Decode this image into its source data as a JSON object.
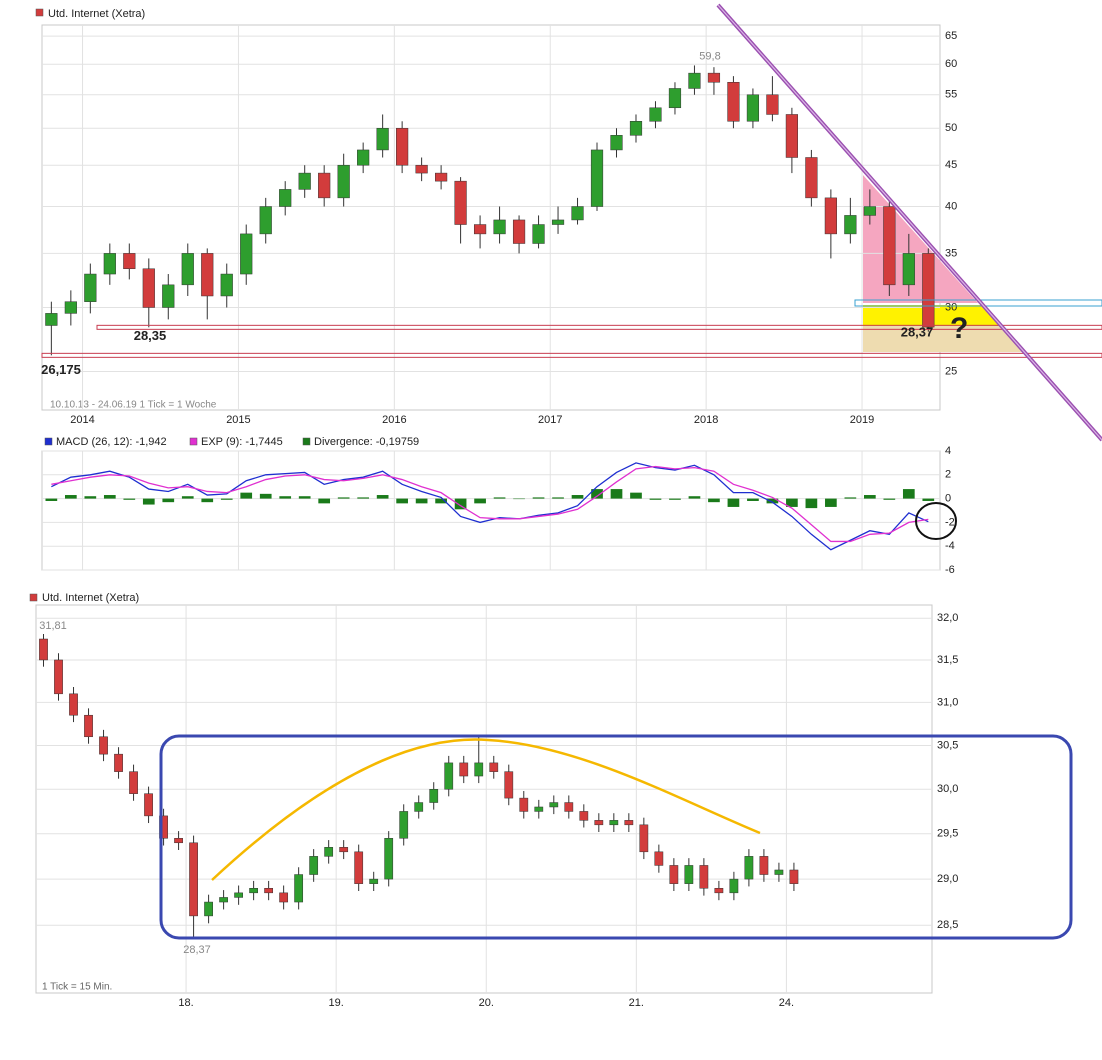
{
  "chart_data": [
    {
      "type": "candlestick",
      "title": "Utd. Internet (Xetra)",
      "log_scale": true,
      "grid": true,
      "up_color": "#2e9e2e",
      "down_color": "#d23c3c",
      "x": [
        2013.8,
        2013.925,
        2014.05,
        2014.175,
        2014.3,
        2014.425,
        2014.55,
        2014.675,
        2014.8,
        2014.925,
        2015.05,
        2015.175,
        2015.3,
        2015.425,
        2015.55,
        2015.675,
        2015.8,
        2015.925,
        2016.05,
        2016.175,
        2016.3,
        2016.425,
        2016.55,
        2016.675,
        2016.8,
        2016.925,
        2017.05,
        2017.175,
        2017.3,
        2017.425,
        2017.55,
        2017.675,
        2017.8,
        2017.925,
        2018.05,
        2018.175,
        2018.3,
        2018.425,
        2018.55,
        2018.675,
        2018.8,
        2018.925,
        2019.05,
        2019.175,
        2019.3,
        2019.425
      ],
      "open": [
        28.5,
        29.5,
        30.5,
        33,
        35,
        33.5,
        30,
        32,
        35,
        31,
        33,
        37,
        40,
        42,
        44,
        41,
        45,
        47,
        50,
        45,
        44,
        43,
        38,
        37,
        38.5,
        36,
        38,
        38.5,
        40,
        47,
        49,
        51,
        53,
        56,
        58.5,
        57,
        51,
        55,
        52,
        46,
        41,
        37,
        39,
        40,
        32,
        35
      ],
      "high": [
        30.5,
        31.5,
        34,
        36,
        36,
        34.5,
        33,
        36,
        35.5,
        34,
        38,
        41,
        43,
        45,
        45,
        46.5,
        48,
        52,
        51,
        46,
        45,
        43.5,
        39,
        40,
        39,
        39,
        40,
        41,
        48,
        50,
        52,
        54,
        57,
        59.8,
        59.5,
        58,
        56,
        58,
        53,
        47,
        42,
        41,
        42,
        41,
        37,
        35.5
      ],
      "low": [
        26.175,
        28.5,
        29.5,
        32,
        32.5,
        28.35,
        29,
        31,
        29,
        30,
        32,
        36,
        39,
        41,
        40,
        40,
        44,
        46,
        44,
        43,
        42,
        36,
        35.5,
        36,
        35,
        35.5,
        37,
        38,
        39.5,
        46,
        48,
        50,
        52,
        55,
        55,
        50,
        50,
        51,
        44,
        40,
        34.5,
        36,
        38,
        31,
        31,
        28.0
      ],
      "close": [
        29.5,
        30.5,
        33,
        35,
        33.5,
        30,
        32,
        35,
        31,
        33,
        37,
        40,
        42,
        44,
        41,
        45,
        47,
        50,
        45,
        44,
        43,
        38,
        37,
        38.5,
        36,
        38,
        38.5,
        40,
        47,
        49,
        51,
        53,
        56,
        58.5,
        57,
        51,
        55,
        52,
        46,
        41,
        37,
        39,
        40,
        32,
        35,
        28.37
      ],
      "xlim": [
        2013.74,
        2019.5
      ],
      "xticks": [
        2014,
        2015,
        2016,
        2017,
        2018,
        2019
      ],
      "ylim": [
        22.4,
        67.1
      ],
      "yticks": [
        25,
        30,
        35,
        40,
        45,
        50,
        55,
        60,
        65
      ],
      "annotations": [
        {
          "value": 59.8,
          "label": "59,8"
        },
        {
          "value": 28.35,
          "label": "28,35"
        },
        {
          "value": 26.175,
          "label": "26,175"
        },
        {
          "value": 28.37,
          "label": "28,37"
        }
      ],
      "mark_text": "?",
      "footnote": "10.10.13 - 24.06.19   1 Tick = 1 Woche"
    },
    {
      "type": "combo",
      "grid": true,
      "x": [
        2013.8,
        2013.925,
        2014.05,
        2014.175,
        2014.3,
        2014.425,
        2014.55,
        2014.675,
        2014.8,
        2014.925,
        2015.05,
        2015.175,
        2015.3,
        2015.425,
        2015.55,
        2015.675,
        2015.8,
        2015.925,
        2016.05,
        2016.175,
        2016.3,
        2016.425,
        2016.55,
        2016.675,
        2016.8,
        2016.925,
        2017.05,
        2017.175,
        2017.3,
        2017.425,
        2017.55,
        2017.675,
        2017.8,
        2017.925,
        2018.05,
        2018.175,
        2018.3,
        2018.425,
        2018.55,
        2018.675,
        2018.8,
        2018.925,
        2019.05,
        2019.175,
        2019.3,
        2019.425
      ],
      "series": [
        {
          "name": "MACD (26, 12): -1,942",
          "color": "#1f2fd0",
          "type": "line",
          "values": [
            1.0,
            1.8,
            2.0,
            2.3,
            1.8,
            0.8,
            0.6,
            1.2,
            0.3,
            0.4,
            1.5,
            2.0,
            2.1,
            2.2,
            1.2,
            1.6,
            1.8,
            2.3,
            1.2,
            0.6,
            0.1,
            -1.5,
            -2.0,
            -1.6,
            -1.7,
            -1.4,
            -1.2,
            -0.6,
            1.0,
            2.2,
            3.0,
            2.6,
            2.4,
            2.8,
            2.0,
            0.5,
            0.5,
            -0.3,
            -1.5,
            -3.0,
            -4.3,
            -3.5,
            -2.7,
            -3.0,
            -1.2,
            -1.942
          ]
        },
        {
          "name": "EXP (9): -1,7445",
          "color": "#e030d0",
          "type": "line",
          "values": [
            1.2,
            1.5,
            1.8,
            2.0,
            1.9,
            1.3,
            0.9,
            1.0,
            0.6,
            0.5,
            1.0,
            1.6,
            1.9,
            2.0,
            1.6,
            1.5,
            1.7,
            2.0,
            1.6,
            1.0,
            0.5,
            -0.6,
            -1.6,
            -1.7,
            -1.7,
            -1.5,
            -1.3,
            -0.9,
            0.2,
            1.4,
            2.5,
            2.7,
            2.5,
            2.6,
            2.3,
            1.2,
            0.7,
            0.1,
            -0.8,
            -2.2,
            -3.6,
            -3.6,
            -3.0,
            -2.9,
            -2.0,
            -1.7445
          ]
        },
        {
          "name": "Divergence: -0,19759",
          "color": "#1a7a1a",
          "type": "bar",
          "values": [
            -0.2,
            0.3,
            0.2,
            0.3,
            -0.1,
            -0.5,
            -0.3,
            0.2,
            -0.3,
            -0.1,
            0.5,
            0.4,
            0.2,
            0.2,
            -0.4,
            0.1,
            0.1,
            0.3,
            -0.4,
            -0.4,
            -0.4,
            -0.9,
            -0.4,
            0.1,
            0,
            0.1,
            0.1,
            0.3,
            0.8,
            0.8,
            0.5,
            -0.1,
            -0.1,
            0.2,
            -0.3,
            -0.7,
            -0.2,
            -0.4,
            -0.7,
            -0.8,
            -0.7,
            0.1,
            0.3,
            -0.1,
            0.8,
            -0.19759
          ]
        }
      ],
      "xlim": [
        2013.74,
        2019.5
      ],
      "xticks": [
        2014,
        2015,
        2016,
        2017,
        2018,
        2019
      ],
      "ylim": [
        -6,
        4
      ],
      "yticks": [
        -6,
        -4,
        -2,
        0,
        2,
        4
      ]
    },
    {
      "type": "candlestick",
      "title": "Utd. Internet (Xetra)",
      "log_scale": true,
      "grid": true,
      "up_color": "#2e9e2e",
      "down_color": "#d23c3c",
      "x": [
        -0.95,
        -0.85,
        -0.75,
        -0.65,
        -0.55,
        -0.45,
        -0.35,
        -0.25,
        -0.15,
        -0.05,
        0.05,
        0.15,
        0.25,
        0.35,
        0.45,
        0.55,
        0.65,
        0.75,
        0.85,
        0.95,
        1.05,
        1.15,
        1.25,
        1.35,
        1.45,
        1.55,
        1.65,
        1.75,
        1.85,
        1.95,
        2.05,
        2.15,
        2.25,
        2.35,
        2.45,
        2.55,
        2.65,
        2.75,
        2.85,
        2.95,
        3.05,
        3.15,
        3.25,
        3.35,
        3.45,
        3.55,
        3.65,
        3.75,
        3.85,
        3.95,
        4.05
      ],
      "open": [
        31.75,
        31.5,
        31.1,
        30.85,
        30.6,
        30.4,
        30.2,
        29.95,
        29.7,
        29.45,
        29.4,
        28.6,
        28.75,
        28.8,
        28.85,
        28.9,
        28.85,
        28.75,
        29.05,
        29.25,
        29.35,
        29.3,
        28.95,
        29.0,
        29.45,
        29.75,
        29.85,
        30.0,
        30.3,
        30.15,
        30.3,
        30.2,
        29.9,
        29.75,
        29.8,
        29.85,
        29.75,
        29.65,
        29.6,
        29.65,
        29.6,
        29.3,
        29.15,
        28.95,
        29.15,
        28.9,
        28.85,
        29.0,
        29.25,
        29.05,
        29.1
      ],
      "high": [
        31.81,
        31.58,
        31.18,
        30.93,
        30.68,
        30.48,
        30.28,
        30.03,
        29.78,
        29.53,
        29.48,
        28.83,
        28.88,
        28.93,
        28.98,
        28.98,
        28.93,
        29.13,
        29.33,
        29.43,
        29.43,
        29.38,
        29.08,
        29.53,
        29.83,
        29.93,
        30.08,
        30.38,
        30.38,
        30.6,
        30.38,
        30.28,
        29.98,
        29.88,
        29.93,
        29.93,
        29.83,
        29.73,
        29.73,
        29.73,
        29.68,
        29.38,
        29.23,
        29.23,
        29.23,
        28.98,
        29.08,
        29.33,
        29.33,
        29.18,
        29.18
      ],
      "low": [
        31.42,
        31.02,
        30.77,
        30.52,
        30.32,
        30.12,
        29.87,
        29.62,
        29.37,
        29.32,
        28.37,
        28.52,
        28.67,
        28.72,
        28.77,
        28.77,
        28.67,
        28.67,
        28.97,
        29.17,
        29.22,
        28.87,
        28.87,
        28.92,
        29.37,
        29.67,
        29.77,
        29.92,
        30.07,
        30.07,
        30.12,
        29.82,
        29.67,
        29.67,
        29.72,
        29.67,
        29.57,
        29.52,
        29.52,
        29.52,
        29.22,
        29.07,
        28.87,
        28.87,
        28.82,
        28.77,
        28.77,
        28.92,
        28.97,
        28.97,
        28.87
      ],
      "close": [
        31.5,
        31.1,
        30.85,
        30.6,
        30.4,
        30.2,
        29.95,
        29.7,
        29.45,
        29.4,
        28.6,
        28.75,
        28.8,
        28.85,
        28.9,
        28.85,
        28.75,
        29.05,
        29.25,
        29.35,
        29.3,
        28.95,
        29.0,
        29.45,
        29.75,
        29.85,
        30.0,
        30.3,
        30.15,
        30.3,
        30.2,
        29.9,
        29.75,
        29.8,
        29.85,
        29.75,
        29.65,
        29.6,
        29.65,
        29.6,
        29.3,
        29.15,
        28.95,
        29.15,
        28.9,
        28.85,
        29.0,
        29.25,
        29.05,
        29.1,
        28.95
      ],
      "xlim": [
        -1.0,
        4.97
      ],
      "xticks": [
        {
          "value": 0,
          "label": "18."
        },
        {
          "value": 1,
          "label": "19."
        },
        {
          "value": 2,
          "label": "20."
        },
        {
          "value": 3,
          "label": "21."
        },
        {
          "value": 4,
          "label": "24."
        }
      ],
      "ylim": [
        27.78,
        32.16
      ],
      "yticks": [
        {
          "value": 28.5,
          "label": "28,5"
        },
        {
          "value": 29,
          "label": "29,0"
        },
        {
          "value": 29.5,
          "label": "29,5"
        },
        {
          "value": 30,
          "label": "30,0"
        },
        {
          "value": 30.5,
          "label": "30,5"
        },
        {
          "value": 31,
          "label": "31,0"
        },
        {
          "value": 31.5,
          "label": "31,5"
        },
        {
          "value": 32,
          "label": "32,0"
        }
      ],
      "annotations": [
        {
          "value": 31.81,
          "label": "31,81"
        },
        {
          "value": 28.37,
          "label": "28,37"
        }
      ],
      "footnote": "1 Tick = 15 Min."
    }
  ]
}
